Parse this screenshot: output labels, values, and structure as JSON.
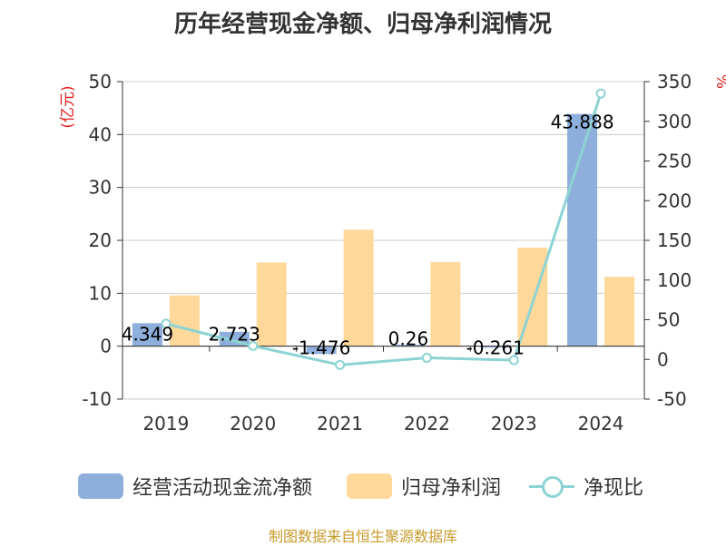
{
  "chart_data": {
    "type": "bar",
    "title": "历年经营现金净额、归母净利润情况",
    "categories": [
      "2019",
      "2020",
      "2021",
      "2022",
      "2023",
      "2024"
    ],
    "y_left_unit": "(亿元)",
    "y_right_unit": "%",
    "ylim_left": [
      -10,
      50
    ],
    "yticks_left": [
      "-10",
      "0",
      "10",
      "20",
      "30",
      "40",
      "50"
    ],
    "ylim_right": [
      -50,
      350
    ],
    "yticks_right": [
      "-50",
      "0",
      "50",
      "100",
      "150",
      "200",
      "250",
      "300",
      "350"
    ],
    "series": [
      {
        "name": "经营活动现金流净额",
        "kind": "bar",
        "axis": "left",
        "color": "#8eaedb",
        "values": [
          4.349,
          2.723,
          -1.476,
          0.26,
          -0.261,
          43.888
        ],
        "labels": [
          "4.349",
          "2.723",
          "-1.476",
          "0.26",
          "-0.261",
          "43.888"
        ]
      },
      {
        "name": "归母净利润",
        "kind": "bar",
        "axis": "left",
        "color": "#ffd89a",
        "values": [
          9.6,
          15.8,
          22.0,
          15.9,
          18.6,
          13.1
        ]
      },
      {
        "name": "净现比",
        "kind": "line",
        "axis": "right",
        "color": "#8dd3d3",
        "values": [
          45,
          17,
          -7,
          2,
          -1,
          335
        ]
      }
    ],
    "grid": true,
    "legend": "bottom"
  },
  "source": "制图数据来自恒生聚源数据库"
}
